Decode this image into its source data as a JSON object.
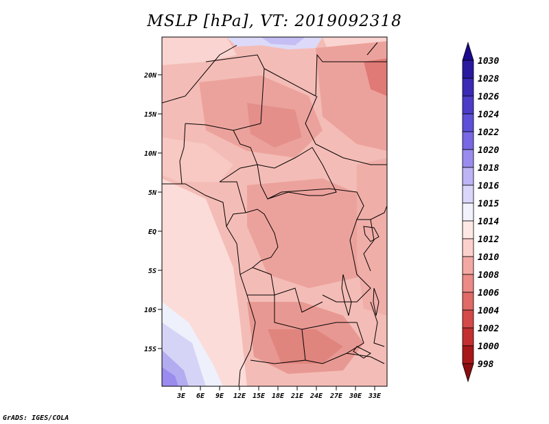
{
  "title": "MSLP [hPa], VT: 2019092318",
  "credit": "GrADS: IGES/COLA",
  "map": {
    "lat_ticks": [
      "20N",
      "15N",
      "10N",
      "5N",
      "EQ",
      "5S",
      "10S",
      "15S"
    ],
    "lon_ticks": [
      "3E",
      "6E",
      "9E",
      "12E",
      "15E",
      "18E",
      "21E",
      "24E",
      "27E",
      "30E",
      "33E"
    ]
  },
  "colorbar": {
    "levels": [
      "1030",
      "1028",
      "1026",
      "1024",
      "1022",
      "1020",
      "1018",
      "1016",
      "1015",
      "1014",
      "1012",
      "1010",
      "1008",
      "1006",
      "1004",
      "1002",
      "1000",
      "998"
    ],
    "colors": [
      "#1a0a8c",
      "#2a1aa0",
      "#3a2ab6",
      "#4c3cc8",
      "#5e50d8",
      "#7868e4",
      "#9a8cee",
      "#bcb4f4",
      "#dad6fa",
      "#f2f2fd",
      "#fde8e6",
      "#fcd0cc",
      "#f4a8a4",
      "#ec8a86",
      "#e06a66",
      "#d44a48",
      "#c43030",
      "#a81818",
      "#8a0e0e"
    ]
  }
}
